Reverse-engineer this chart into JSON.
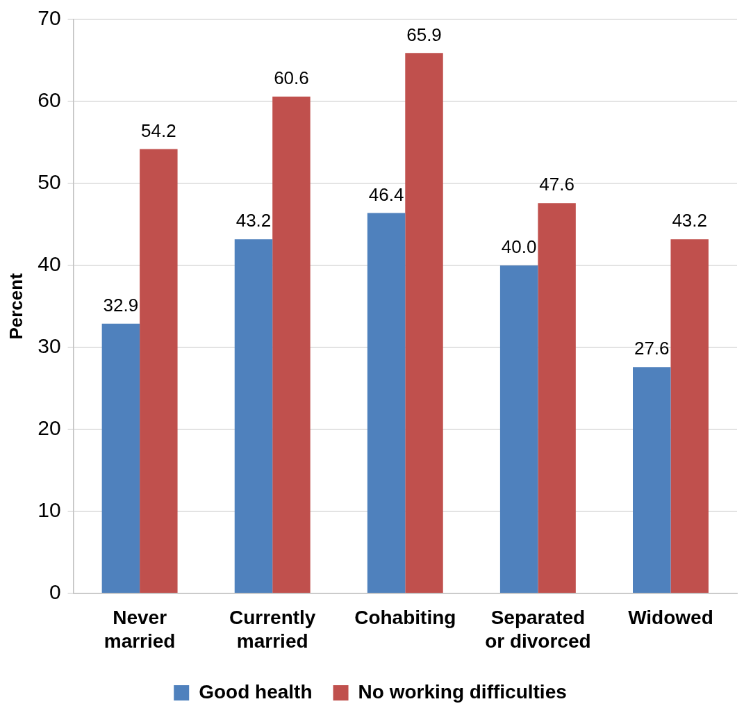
{
  "chart_data": {
    "type": "bar",
    "ylabel": "Percent",
    "categories": [
      "Never married",
      "Currently married",
      "Cohabiting",
      "Separated or divorced",
      "Widowed"
    ],
    "series": [
      {
        "name": "Good health",
        "color": "#4f81bd",
        "values": [
          32.9,
          43.2,
          46.4,
          40.0,
          27.6
        ],
        "value_labels": [
          "32.9",
          "43.2",
          "46.4",
          "40.0",
          "27.6"
        ]
      },
      {
        "name": "No working difficulties",
        "color": "#c0504d",
        "values": [
          54.2,
          60.6,
          65.9,
          47.6,
          43.2
        ],
        "value_labels": [
          "54.2",
          "60.6",
          "65.9",
          "47.6",
          "43.2"
        ]
      }
    ],
    "ylim": [
      0,
      70
    ],
    "yticks": [
      0,
      10,
      20,
      30,
      40,
      50,
      60,
      70
    ],
    "grid": "y",
    "legend": "bottom"
  }
}
